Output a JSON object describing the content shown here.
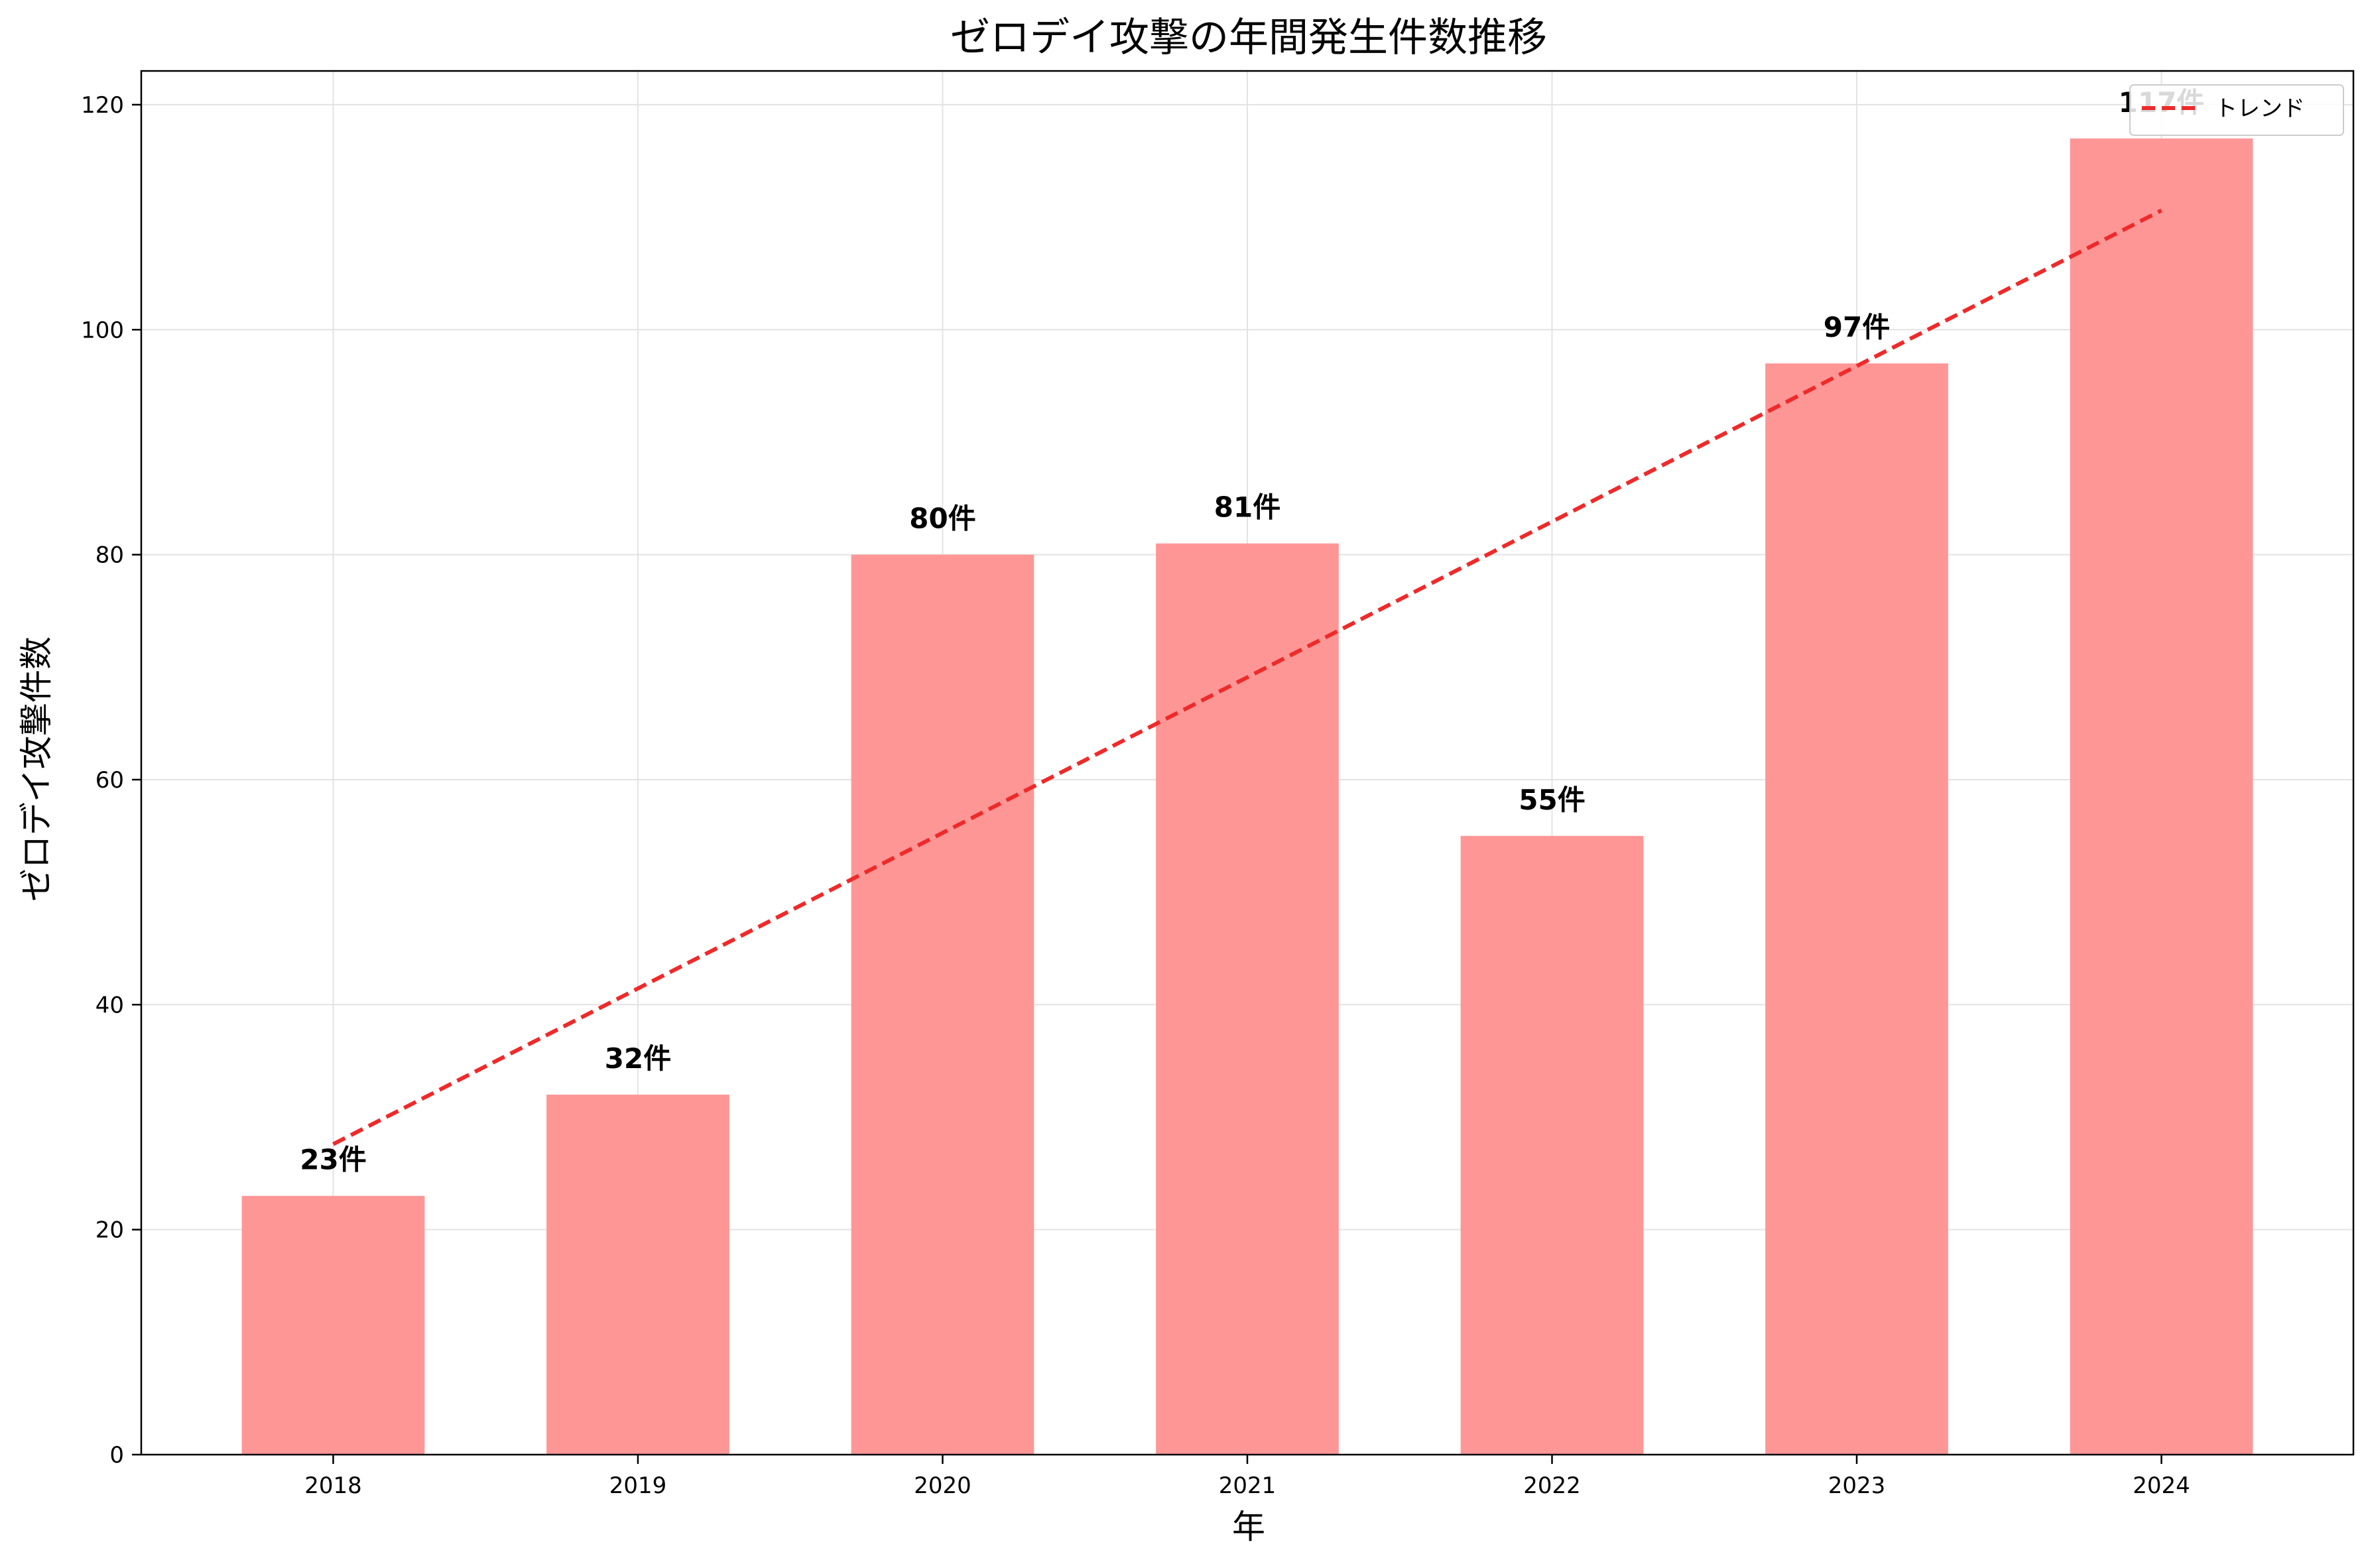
{
  "chart_data": {
    "type": "bar",
    "title": "ゼロデイ攻撃の年間発生件数推移",
    "xlabel": "年",
    "ylabel": "ゼロデイ攻撃件数",
    "categories": [
      "2018",
      "2019",
      "2020",
      "2021",
      "2022",
      "2023",
      "2024"
    ],
    "values": [
      23,
      32,
      80,
      81,
      55,
      97,
      117
    ],
    "data_labels": [
      "23件",
      "32件",
      "80件",
      "81件",
      "55件",
      "97件",
      "117件"
    ],
    "ylim": [
      0,
      123
    ],
    "yticks": [
      0,
      20,
      40,
      60,
      80,
      100,
      120
    ],
    "bar_color": "#ff9696",
    "grid": true,
    "trend": {
      "name": "トレンド",
      "start": 27.6,
      "end": 110.6,
      "color": "#ee2a2a",
      "style": "dashed"
    },
    "legend_position": "top-right"
  }
}
